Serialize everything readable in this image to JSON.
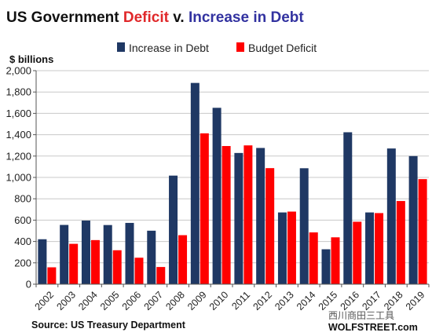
{
  "title": {
    "part1": "US Government ",
    "part2": "Deficit",
    "part3": " v. ",
    "part4": "Increase in Debt"
  },
  "colors": {
    "title_dark": "#111111",
    "title_red": "#e0282a",
    "title_blue": "#3232a0",
    "series_debt": "#1f3864",
    "series_deficit": "#ff0000",
    "grid": "#c8c8c8",
    "axis": "#555555"
  },
  "source": "Source: US Treasury Department",
  "watermark": "西川商田三工具",
  "brand": "WOLFSTREET.com",
  "chart_data": {
    "type": "bar",
    "ylabel": "$ billions",
    "ylim": [
      0,
      2000
    ],
    "yticks": [
      "0",
      "200",
      "400",
      "600",
      "800",
      "1,000",
      "1,200",
      "1,400",
      "1,600",
      "1,800",
      "2,000"
    ],
    "grid": true,
    "legend_position": "top",
    "categories": [
      "2002",
      "2003",
      "2004",
      "2005",
      "2006",
      "2007",
      "2008",
      "2009",
      "2010",
      "2011",
      "2012",
      "2013",
      "2014",
      "2015",
      "2016",
      "2017",
      "2018",
      "2019"
    ],
    "series": [
      {
        "name": "Increase in Debt",
        "values": [
          421,
          555,
          596,
          554,
          574,
          501,
          1017,
          1885,
          1652,
          1229,
          1276,
          672,
          1086,
          327,
          1423,
          672,
          1271,
          1200
        ]
      },
      {
        "name": "Budget Deficit",
        "values": [
          158,
          378,
          413,
          318,
          248,
          161,
          459,
          1413,
          1294,
          1300,
          1087,
          680,
          485,
          439,
          585,
          666,
          779,
          984
        ]
      }
    ]
  }
}
